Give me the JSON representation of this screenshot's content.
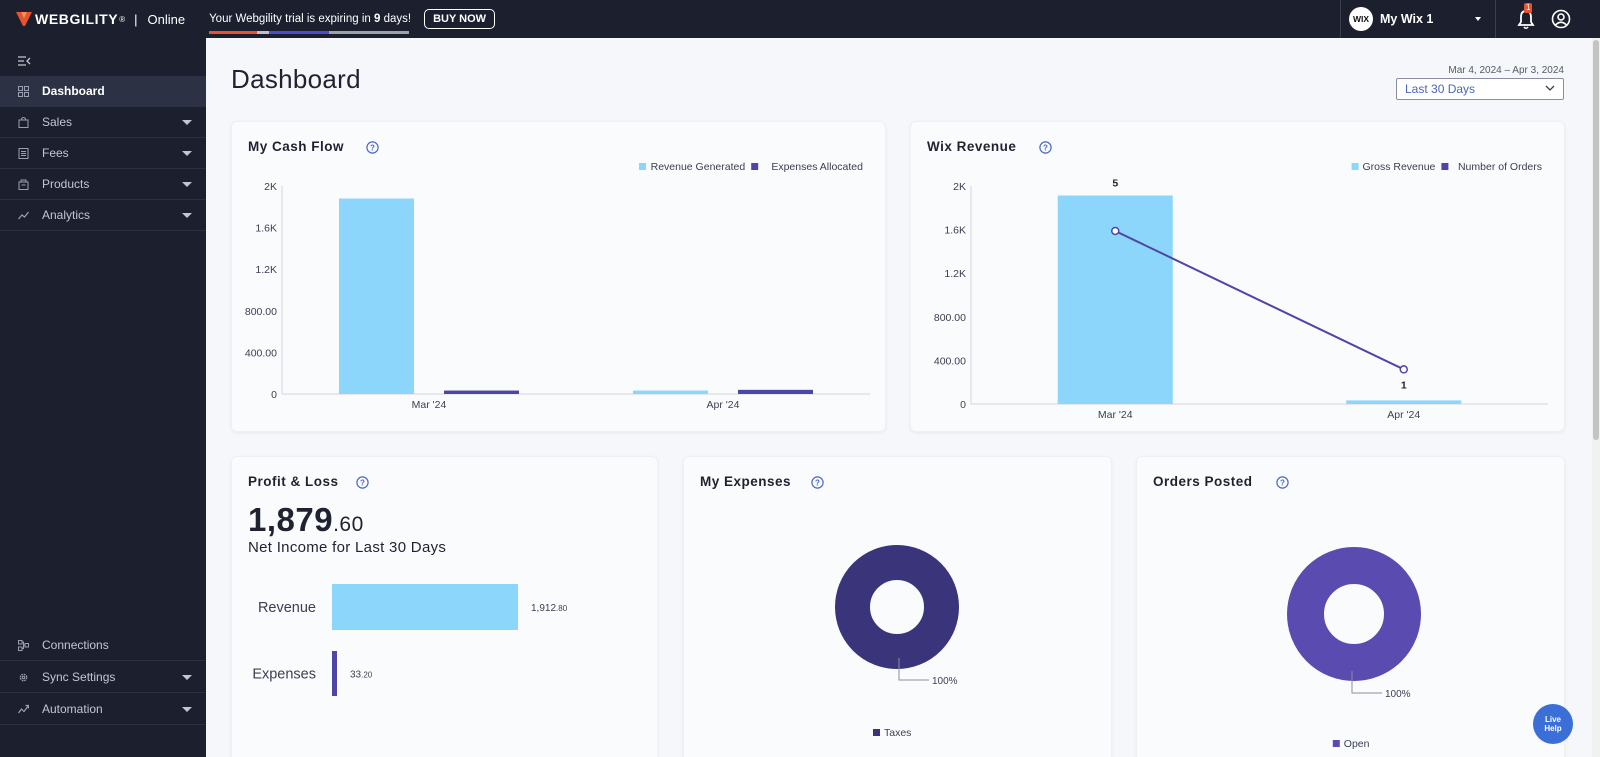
{
  "topbar": {
    "brand": "WEBGILITY",
    "brand_mark": "®",
    "plan": "Online",
    "trial_prefix": "Your Webgility trial is expiring in ",
    "trial_days": "9",
    "trial_suffix": " days!",
    "buy_now": "BUY NOW",
    "account_badge": "WIX",
    "account_name": "My Wix 1",
    "notification_count": "1"
  },
  "sidebar": {
    "items": [
      {
        "label": "Dashboard",
        "icon": "dashboard-icon",
        "active": true
      },
      {
        "label": "Sales",
        "icon": "bag-icon",
        "caret": true
      },
      {
        "label": "Fees",
        "icon": "receipt-icon",
        "caret": true
      },
      {
        "label": "Products",
        "icon": "box-icon",
        "caret": true
      },
      {
        "label": "Analytics",
        "icon": "trend-icon",
        "caret": true
      }
    ],
    "bottom_items": [
      {
        "label": "Connections",
        "icon": "connections-icon"
      },
      {
        "label": "Sync Settings",
        "icon": "gear-icon",
        "caret": true
      },
      {
        "label": "Automation",
        "icon": "automation-icon",
        "caret": true
      }
    ]
  },
  "main": {
    "title": "Dashboard",
    "date_range": "Mar 4, 2024 – Apr 3, 2024",
    "range_selected": "Last 30 Days"
  },
  "colors": {
    "light_blue": "#8dd6fb",
    "indigo": "#4d45a8",
    "dark_indigo": "#3a357a",
    "purple": "#5a4bb0"
  },
  "cards": {
    "cash_flow": {
      "title": "My Cash Flow"
    },
    "wix_revenue": {
      "title": "Wix Revenue"
    },
    "profit_loss": {
      "title": "Profit & Loss",
      "amount_whole": "1,879",
      "amount_cents": ".60",
      "subtitle": "Net Income for Last 30 Days"
    },
    "my_expenses": {
      "title": "My Expenses"
    },
    "orders_posted": {
      "title": "Orders Posted"
    }
  },
  "chart_data": [
    {
      "id": "cash_flow",
      "type": "bar",
      "categories": [
        "Mar '24",
        "Apr '24"
      ],
      "series": [
        {
          "name": "Revenue Generated",
          "values": [
            1879.6,
            33
          ]
        },
        {
          "name": "Expenses Allocated",
          "values": [
            33.2,
            40
          ]
        }
      ],
      "yticks": [
        "0",
        "400.00",
        "800.00",
        "1.2K",
        "1.6K",
        "2K"
      ],
      "ylim": [
        0,
        2000
      ],
      "legend": "top-right"
    },
    {
      "id": "wix_revenue",
      "type": "bar",
      "categories": [
        "Mar '24",
        "Apr '24"
      ],
      "series": [
        {
          "name": "Gross Revenue",
          "values": [
            1912.8,
            33
          ]
        },
        {
          "name": "Number of Orders",
          "values": [
            5,
            1
          ],
          "render": "line"
        }
      ],
      "order_labels": [
        "5",
        "1"
      ],
      "yticks": [
        "0",
        "400.00",
        "800.00",
        "1.2K",
        "1.6K",
        "2K"
      ],
      "ylim": [
        0,
        2000
      ],
      "y2lim": [
        0,
        6.3
      ],
      "legend": "top-right"
    },
    {
      "id": "profit_loss",
      "type": "bar",
      "orientation": "horizontal",
      "categories": [
        "Revenue",
        "Expenses"
      ],
      "values": [
        1912.8,
        33.2
      ],
      "value_labels": [
        {
          "main": "1,912",
          "frac": ".80"
        },
        {
          "main": "33",
          "frac": ".20"
        }
      ]
    },
    {
      "id": "my_expenses",
      "type": "pie",
      "slices": [
        {
          "name": "Taxes",
          "value": 100,
          "label": "100%"
        }
      ],
      "legend": "bottom"
    },
    {
      "id": "orders_posted",
      "type": "pie",
      "slices": [
        {
          "name": "Open",
          "value": 100,
          "label": "100%"
        }
      ],
      "legend": "bottom"
    }
  ]
}
